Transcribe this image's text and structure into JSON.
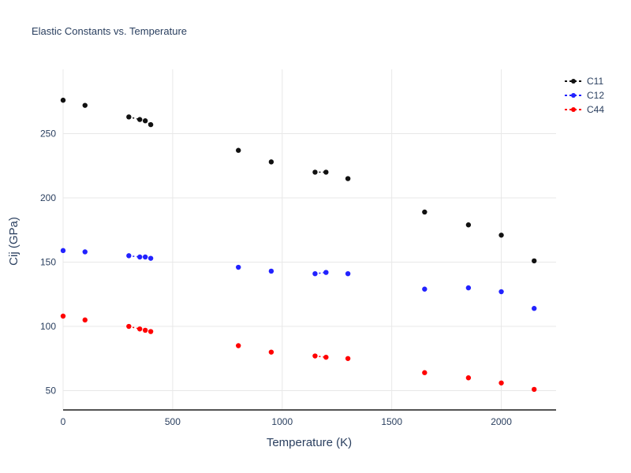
{
  "chart_data": {
    "type": "scatter",
    "title": "Elastic Constants vs. Temperature",
    "xlabel": "Temperature (K)",
    "ylabel": "Cij (GPa)",
    "xlim": [
      0,
      2250
    ],
    "ylim": [
      35,
      300
    ],
    "xticks": [
      0,
      500,
      1000,
      1500,
      2000
    ],
    "yticks": [
      50,
      100,
      150,
      200,
      250
    ],
    "grid": true,
    "grid_color": "#e8e8e8",
    "axis_color": "#2a3f5f",
    "legend_position": "top-right-outside",
    "x": [
      0,
      100,
      300,
      350,
      375,
      400,
      800,
      950,
      1150,
      1200,
      1300,
      1650,
      1850,
      2000,
      2150
    ],
    "series": [
      {
        "name": "C11",
        "color": "#111111",
        "values": [
          276,
          272,
          263,
          261,
          260,
          257,
          237,
          228,
          220,
          220,
          215,
          189,
          179,
          171,
          151
        ]
      },
      {
        "name": "C12",
        "color": "#2222ff",
        "values": [
          159,
          158,
          155,
          154,
          154,
          153,
          146,
          143,
          141,
          142,
          141,
          129,
          130,
          127,
          114
        ]
      },
      {
        "name": "C44",
        "color": "#ff0000",
        "values": [
          108,
          105,
          100,
          98,
          97,
          96,
          85,
          80,
          77,
          76,
          75,
          64,
          60,
          56,
          51
        ]
      }
    ]
  }
}
